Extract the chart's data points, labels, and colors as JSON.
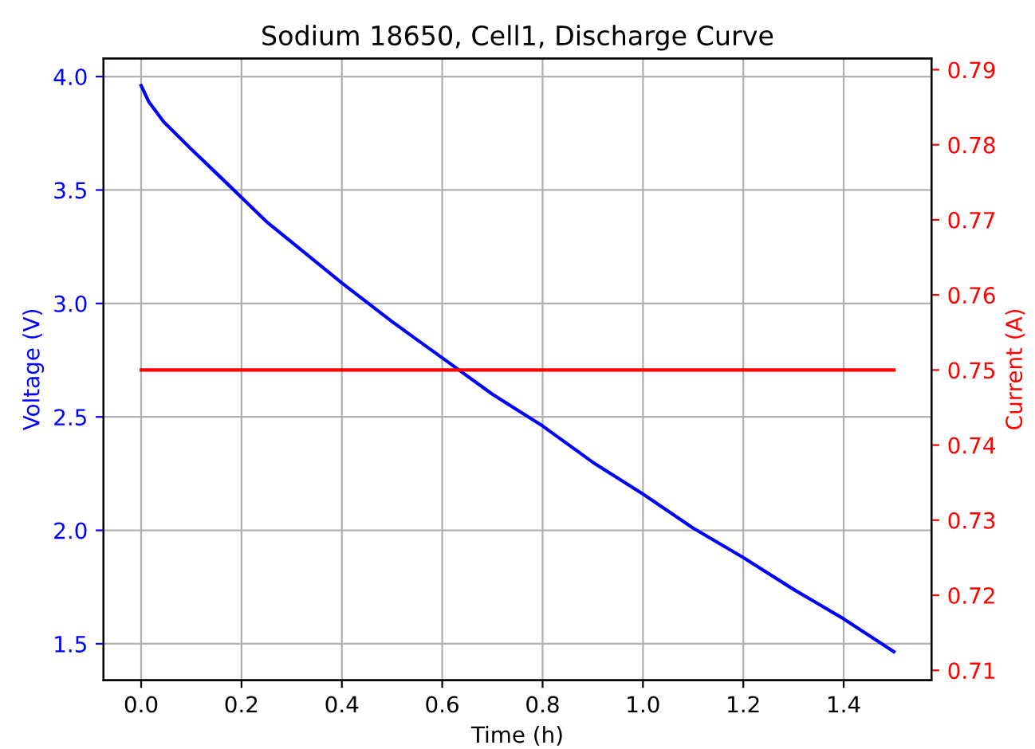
{
  "chart_data": {
    "type": "line",
    "title": "Sodium 18650, Cell1, Discharge Curve",
    "xlabel": "Time (h)",
    "ylabel": "Voltage (V)",
    "y2label": "Current (A)",
    "series": [
      {
        "axis": "y",
        "color": "#0000ff",
        "x": [
          0,
          0.015,
          0.045,
          0.1,
          0.18,
          0.25,
          0.3,
          0.4,
          0.5,
          0.6,
          0.7,
          0.8,
          0.9,
          1.0,
          1.1,
          1.2,
          1.3,
          1.4,
          1.5
        ],
        "values": [
          3.96,
          3.89,
          3.8,
          3.68,
          3.51,
          3.36,
          3.27,
          3.09,
          2.92,
          2.76,
          2.6,
          2.46,
          2.3,
          2.16,
          2.01,
          1.88,
          1.74,
          1.61,
          1.465
        ]
      },
      {
        "axis": "y2",
        "color": "#ff0000",
        "x": [
          0,
          1.5
        ],
        "values": [
          0.75,
          0.75
        ]
      }
    ],
    "xlim": [
      -0.075,
      1.575
    ],
    "xticks": [
      {
        "value": 0,
        "label": "0.0"
      },
      0.2,
      0.4,
      0.6,
      0.8,
      {
        "value": 1,
        "label": "1.0"
      },
      1.2,
      1.4
    ],
    "ylim": [
      1.34,
      4.08
    ],
    "yticks": [
      1.5,
      {
        "value": 2,
        "label": "2.0"
      },
      2.5,
      {
        "value": 3,
        "label": "3.0"
      },
      3.5,
      {
        "value": 4,
        "label": "4.0"
      }
    ],
    "y2lim": [
      0.7087,
      0.7915
    ],
    "y2ticks": [
      0.71,
      0.72,
      0.73,
      0.74,
      0.75,
      0.76,
      0.77,
      0.78,
      0.79
    ],
    "grid": true,
    "line_style": "solid",
    "marker": "none"
  }
}
